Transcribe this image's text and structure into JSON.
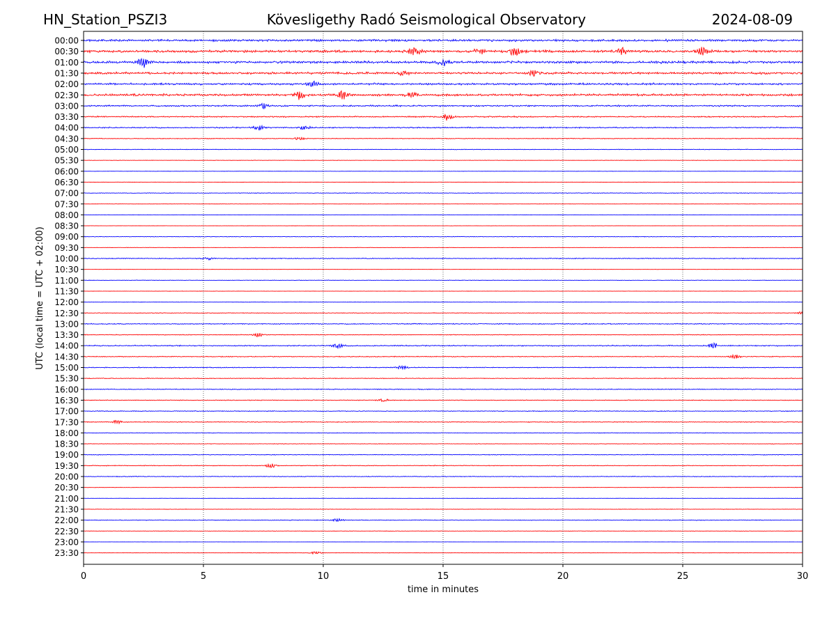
{
  "header": {
    "station": "HN_Station_PSZI3",
    "observatory": "Kövesligethy Radó Seismological Observatory",
    "date": "2024-08-09"
  },
  "chart_data": {
    "type": "line",
    "title": "Kövesligethy Radó Seismological Observatory",
    "xlabel": "time in minutes",
    "ylabel": "UTC (local time = UTC + 02:00)",
    "xlim": [
      0,
      30
    ],
    "x_ticks": [
      0,
      5,
      10,
      15,
      20,
      25,
      30
    ],
    "grid": "vertical dotted at 5-minute ticks",
    "series_colors": [
      "#0000ff",
      "#ff0000"
    ],
    "row_labels": [
      "00:00",
      "00:30",
      "01:00",
      "01:30",
      "02:00",
      "02:30",
      "03:00",
      "03:30",
      "04:00",
      "04:30",
      "05:00",
      "05:30",
      "06:00",
      "06:30",
      "07:00",
      "07:30",
      "08:00",
      "08:30",
      "09:00",
      "09:30",
      "10:00",
      "10:30",
      "11:00",
      "11:30",
      "12:00",
      "12:30",
      "13:00",
      "13:30",
      "14:00",
      "14:30",
      "15:00",
      "15:30",
      "16:00",
      "16:30",
      "17:00",
      "17:30",
      "18:00",
      "18:30",
      "19:00",
      "19:30",
      "20:00",
      "20:30",
      "21:00",
      "21:30",
      "22:00",
      "22:30",
      "23:00",
      "23:30"
    ],
    "row_activity": [
      0.9,
      1.0,
      1.0,
      0.9,
      0.8,
      0.9,
      0.6,
      0.55,
      0.5,
      0.3,
      0.25,
      0.15,
      0.1,
      0.12,
      0.25,
      0.1,
      0.1,
      0.08,
      0.25,
      0.15,
      0.35,
      0.1,
      0.2,
      0.1,
      0.15,
      0.25,
      0.4,
      0.3,
      0.45,
      0.35,
      0.35,
      0.3,
      0.35,
      0.3,
      0.3,
      0.3,
      0.25,
      0.2,
      0.3,
      0.3,
      0.3,
      0.15,
      0.1,
      0.15,
      0.3,
      0.15,
      0.05,
      0.15
    ],
    "events": [
      {
        "row": "00:30",
        "minute": 13.8,
        "amp": 1.0
      },
      {
        "row": "00:30",
        "minute": 16.5,
        "amp": 1.0
      },
      {
        "row": "00:30",
        "minute": 18.0,
        "amp": 1.0
      },
      {
        "row": "00:30",
        "minute": 22.5,
        "amp": 0.9
      },
      {
        "row": "00:30",
        "minute": 25.8,
        "amp": 1.0
      },
      {
        "row": "01:00",
        "minute": 2.5,
        "amp": 1.2
      },
      {
        "row": "01:00",
        "minute": 15.0,
        "amp": 0.8
      },
      {
        "row": "01:30",
        "minute": 13.3,
        "amp": 0.6
      },
      {
        "row": "01:30",
        "minute": 18.8,
        "amp": 0.7
      },
      {
        "row": "02:00",
        "minute": 9.6,
        "amp": 0.6
      },
      {
        "row": "02:30",
        "minute": 9.0,
        "amp": 1.0
      },
      {
        "row": "02:30",
        "minute": 10.8,
        "amp": 1.2
      },
      {
        "row": "02:30",
        "minute": 13.7,
        "amp": 0.7
      },
      {
        "row": "03:00",
        "minute": 7.5,
        "amp": 0.6
      },
      {
        "row": "03:30",
        "minute": 15.2,
        "amp": 0.9
      },
      {
        "row": "04:00",
        "minute": 7.3,
        "amp": 0.7
      },
      {
        "row": "04:00",
        "minute": 9.2,
        "amp": 0.5
      },
      {
        "row": "04:30",
        "minute": 9.0,
        "amp": 0.4
      },
      {
        "row": "10:00",
        "minute": 5.2,
        "amp": 0.4
      },
      {
        "row": "12:30",
        "minute": 30.0,
        "amp": 0.4
      },
      {
        "row": "13:30",
        "minute": 7.3,
        "amp": 0.5
      },
      {
        "row": "14:00",
        "minute": 10.6,
        "amp": 0.6
      },
      {
        "row": "14:00",
        "minute": 26.3,
        "amp": 0.7
      },
      {
        "row": "14:30",
        "minute": 27.2,
        "amp": 0.6
      },
      {
        "row": "15:00",
        "minute": 13.3,
        "amp": 0.5
      },
      {
        "row": "16:30",
        "minute": 12.5,
        "amp": 0.4
      },
      {
        "row": "17:30",
        "minute": 1.4,
        "amp": 0.4
      },
      {
        "row": "19:30",
        "minute": 7.8,
        "amp": 0.6
      },
      {
        "row": "22:00",
        "minute": 10.6,
        "amp": 0.4
      },
      {
        "row": "23:30",
        "minute": 9.7,
        "amp": 0.4
      }
    ]
  }
}
